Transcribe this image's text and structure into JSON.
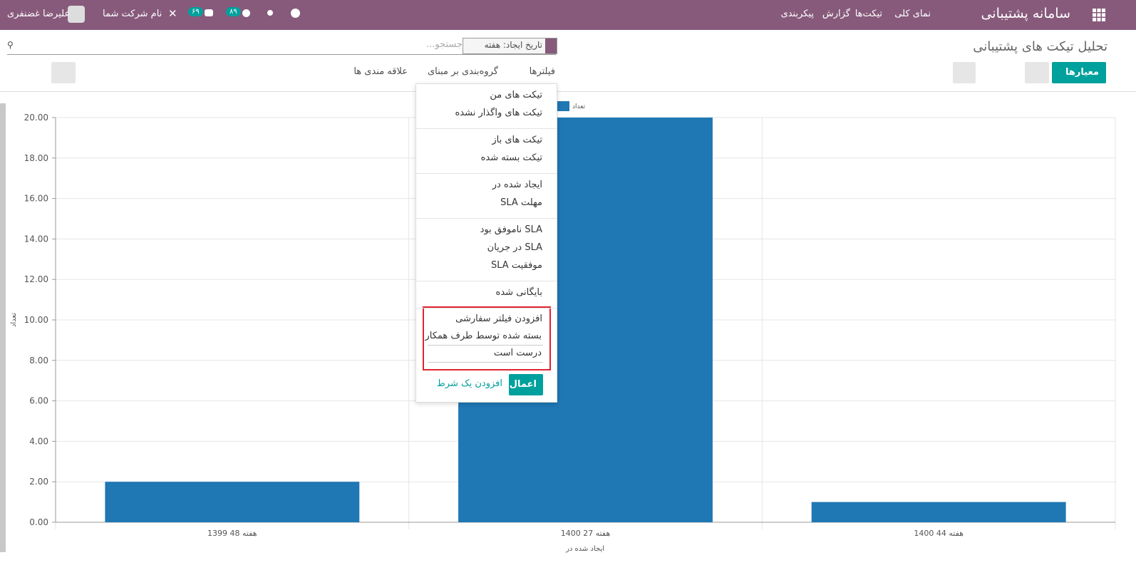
{
  "navbar": {
    "app_name": "سامانه پشتیبانی",
    "menu": [
      "نمای کلی",
      "تیکت‌ها",
      "گزارش",
      "پیکربندی"
    ],
    "user": "علیرضا غضنفری",
    "company": "نام شرکت شما",
    "activity_badge": "۸۹",
    "message_badge": "۶۹"
  },
  "control_panel": {
    "breadcrumb": "تحلیل تیکت های پشتیبانی",
    "facet": "تاریخ ایجاد: هفته",
    "search_placeholder": "جستجو...",
    "measures": "معیارها",
    "filters": "فیلترها",
    "group_by": "گروه‌بندی بر مبنای",
    "favorites": "علاقه مندی ها"
  },
  "filter_menu": {
    "groups": [
      [
        "تیکت های من",
        "تیکت های واگذار نشده"
      ],
      [
        "تیکت های باز",
        "تیکت بسته شده"
      ],
      [
        "ایجاد شده در",
        "مهلت SLA"
      ],
      [
        "SLA ناموفق بود",
        "SLA در جریان",
        "موفقیت SLA"
      ],
      [
        "بایگانی شده"
      ]
    ],
    "custom_title": "افزودن فیلتر سفارشی",
    "custom_field": "بسته شده توسط طرف همکار",
    "custom_operator": "درست است",
    "apply": "اعمال",
    "add_condition": "افزودن یک شرط"
  },
  "chart_data": {
    "type": "bar",
    "categories": [
      "هفته 48 1399",
      "هفته 27 1400",
      "هفته 44 1400"
    ],
    "series": [
      {
        "name": "تعداد",
        "color": "#1f77b4",
        "values": [
          2,
          20,
          1
        ]
      }
    ],
    "y_label": "تعداد",
    "x_label": "ایجاد شده در",
    "ylim": [
      0,
      20
    ],
    "yticks": [
      {
        "value": 0,
        "label": "0.00"
      },
      {
        "value": 2,
        "label": "2.00"
      },
      {
        "value": 4,
        "label": "4.00"
      },
      {
        "value": 6,
        "label": "6.00"
      },
      {
        "value": 8,
        "label": "8.00"
      },
      {
        "value": 10,
        "label": "10.00"
      },
      {
        "value": 12,
        "label": "12.00"
      },
      {
        "value": 14,
        "label": "14.00"
      },
      {
        "value": 16,
        "label": "16.00"
      },
      {
        "value": 18,
        "label": "18.00"
      },
      {
        "value": 20,
        "label": "20.00"
      }
    ],
    "grid": true
  }
}
